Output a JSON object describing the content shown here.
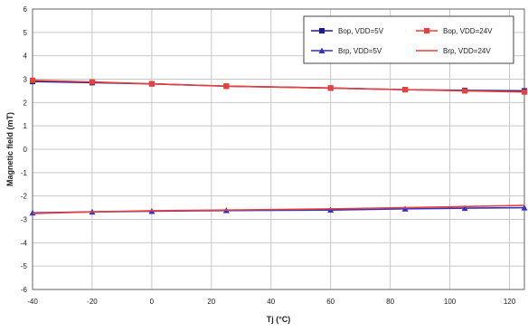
{
  "chart_data": {
    "type": "line",
    "title": "",
    "xlabel": "Tj (°C)",
    "ylabel": "Magnetic field (mT)",
    "xlim": [
      -40,
      125
    ],
    "ylim": [
      -6,
      6
    ],
    "x_ticks": [
      -40,
      -20,
      0,
      20,
      40,
      60,
      80,
      100,
      120
    ],
    "x_tick_labels": [
      "-40",
      "-20",
      "0",
      "20",
      "40",
      "60",
      "80",
      "100",
      "120"
    ],
    "y_ticks": [
      -6,
      -5,
      -4,
      -3,
      -2,
      -1,
      0,
      1,
      2,
      3,
      4,
      5,
      6
    ],
    "y_tick_labels": [
      "-6",
      "-5",
      "-4",
      "-3",
      "-2",
      "-1",
      "0",
      "1",
      "2",
      "3",
      "4",
      "5",
      "6"
    ],
    "grid": true,
    "legend_position": "top-right",
    "x": [
      -40,
      -20,
      0,
      25,
      60,
      85,
      105,
      125
    ],
    "series": [
      {
        "name": "Bop, VDD=5V",
        "color": "#1a1a9c",
        "marker": "square",
        "values": [
          2.9,
          2.85,
          2.8,
          2.7,
          2.62,
          2.55,
          2.52,
          2.5
        ]
      },
      {
        "name": "Bop, VDD=24V",
        "color": "#e8403a",
        "marker": "square",
        "values": [
          2.95,
          2.88,
          2.8,
          2.7,
          2.62,
          2.55,
          2.5,
          2.45
        ]
      },
      {
        "name": "Brp, VDD=5V",
        "color": "#3333cc",
        "marker": "triangle",
        "values": [
          -2.72,
          -2.68,
          -2.65,
          -2.62,
          -2.6,
          -2.55,
          -2.52,
          -2.5
        ]
      },
      {
        "name": "Brp, VDD=24V",
        "color": "#e8403a",
        "marker": "none",
        "values": [
          -2.75,
          -2.68,
          -2.63,
          -2.6,
          -2.55,
          -2.5,
          -2.45,
          -2.4
        ]
      }
    ]
  }
}
